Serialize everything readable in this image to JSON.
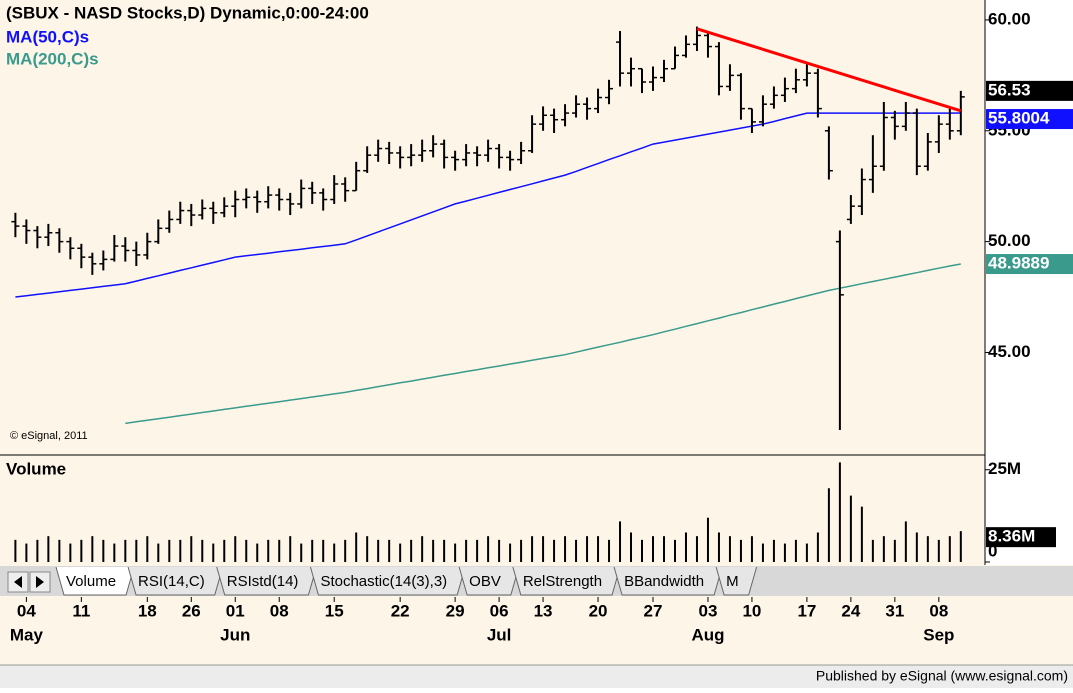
{
  "chart_data": [
    {
      "type": "ohlc",
      "title": "(SBUX - NASD Stocks,D) Dynamic,0:00-24:00",
      "color": "#000000",
      "open": [
        50.9,
        50.7,
        50.5,
        50.2,
        50.4,
        50.0,
        49.7,
        49.3,
        49.0,
        49.2,
        49.8,
        49.6,
        49.4,
        50.0,
        50.6,
        51.0,
        51.4,
        51.2,
        51.5,
        51.3,
        51.6,
        51.9,
        52.0,
        51.8,
        52.1,
        51.9,
        51.7,
        52.4,
        52.2,
        51.9,
        52.6,
        52.3,
        53.2,
        53.9,
        54.2,
        54.0,
        53.8,
        53.9,
        54.1,
        54.4,
        53.8,
        53.7,
        54.0,
        53.9,
        54.2,
        53.8,
        53.7,
        54.1,
        55.3,
        55.7,
        55.5,
        55.8,
        56.2,
        56.0,
        56.5,
        59.0,
        57.6,
        57.8,
        57.2,
        57.4,
        57.8,
        58.4,
        58.9,
        59.3,
        58.8,
        57.0,
        57.5,
        56.0,
        55.4,
        56.2,
        56.6,
        56.9,
        57.3,
        57.6,
        55.0,
        50.0,
        51.0,
        51.6,
        52.8,
        53.4,
        55.6,
        55.2,
        55.8,
        53.4,
        54.5,
        55.3,
        55.0
      ],
      "high": [
        51.3,
        51.0,
        50.7,
        50.8,
        50.6,
        50.2,
        49.9,
        49.5,
        49.6,
        50.3,
        50.2,
        50.0,
        50.4,
        51.0,
        51.4,
        51.8,
        51.7,
        51.9,
        51.8,
        52.0,
        52.3,
        52.4,
        52.3,
        52.5,
        52.4,
        52.2,
        52.8,
        52.7,
        52.4,
        53.0,
        52.9,
        53.6,
        54.3,
        54.6,
        54.5,
        54.3,
        54.4,
        54.6,
        54.8,
        54.6,
        54.1,
        54.4,
        54.3,
        54.6,
        54.4,
        54.1,
        54.5,
        55.7,
        56.1,
        56.0,
        56.2,
        56.6,
        56.5,
        56.9,
        57.3,
        59.5,
        58.3,
        57.8,
        57.9,
        58.2,
        58.8,
        59.3,
        59.7,
        59.4,
        59.0,
        58.0,
        57.6,
        56.0,
        56.6,
        57.0,
        57.4,
        57.8,
        58.0,
        57.8,
        55.2,
        50.5,
        52.1,
        53.3,
        54.8,
        56.3,
        55.9,
        56.3,
        56.0,
        54.9,
        55.7,
        56.1,
        56.8
      ],
      "low": [
        50.2,
        49.9,
        49.7,
        49.8,
        49.5,
        49.2,
        48.8,
        48.5,
        48.7,
        49.1,
        49.1,
        48.9,
        49.2,
        49.9,
        50.4,
        50.8,
        50.7,
        51.0,
        50.8,
        51.1,
        51.1,
        51.5,
        51.3,
        51.5,
        51.4,
        51.2,
        51.5,
        51.7,
        51.4,
        51.7,
        51.8,
        52.3,
        53.1,
        53.6,
        53.5,
        53.3,
        53.4,
        53.6,
        53.8,
        53.3,
        53.2,
        53.4,
        53.4,
        53.6,
        53.3,
        53.2,
        53.5,
        54.0,
        55.0,
        54.9,
        55.2,
        55.6,
        55.5,
        55.8,
        56.2,
        57.0,
        57.0,
        56.7,
        56.8,
        57.2,
        57.8,
        58.3,
        58.6,
        58.3,
        56.6,
        56.8,
        55.5,
        54.9,
        55.2,
        56.0,
        56.3,
        56.7,
        57.0,
        55.6,
        52.8,
        41.5,
        50.8,
        51.2,
        52.2,
        53.2,
        54.6,
        55.0,
        53.0,
        53.2,
        54.0,
        54.6,
        54.8
      ],
      "close": [
        50.7,
        50.5,
        50.2,
        50.4,
        50.0,
        49.7,
        49.3,
        49.0,
        49.2,
        49.8,
        49.6,
        49.4,
        50.0,
        50.6,
        51.0,
        51.4,
        51.2,
        51.5,
        51.3,
        51.6,
        51.9,
        52.0,
        51.8,
        52.1,
        51.9,
        51.7,
        52.4,
        52.2,
        51.9,
        52.6,
        52.3,
        53.2,
        53.9,
        54.2,
        54.0,
        53.8,
        53.9,
        54.1,
        54.4,
        53.8,
        53.7,
        54.0,
        53.9,
        54.2,
        53.8,
        53.7,
        54.1,
        55.3,
        55.7,
        55.5,
        55.8,
        56.2,
        56.0,
        56.5,
        56.9,
        57.6,
        57.8,
        57.2,
        57.4,
        57.8,
        58.4,
        58.9,
        59.3,
        58.8,
        57.0,
        57.5,
        56.0,
        55.4,
        56.2,
        56.6,
        56.9,
        57.3,
        57.6,
        56.0,
        53.2,
        47.6,
        51.6,
        52.8,
        53.4,
        55.6,
        55.2,
        55.8,
        53.4,
        54.5,
        55.3,
        55.0,
        56.53
      ],
      "series": [
        {
          "name": "MA(50,C)s",
          "color": "#1010ff",
          "last_label": "55.8004",
          "values": [
            47.5,
            47.56,
            47.62,
            47.68,
            47.74,
            47.8,
            47.86,
            47.92,
            47.98,
            48.04,
            48.1,
            48.22,
            48.34,
            48.46,
            48.58,
            48.7,
            48.82,
            48.94,
            49.06,
            49.18,
            49.3,
            49.36,
            49.42,
            49.48,
            49.54,
            49.6,
            49.66,
            49.72,
            49.78,
            49.84,
            49.9,
            50.08,
            50.26,
            50.44,
            50.62,
            50.8,
            50.98,
            51.16,
            51.34,
            51.52,
            51.7,
            51.83,
            51.96,
            52.09,
            52.22,
            52.35,
            52.48,
            52.61,
            52.74,
            52.87,
            53.0,
            53.17,
            53.35,
            53.52,
            53.7,
            53.87,
            54.05,
            54.22,
            54.4,
            54.49,
            54.58,
            54.67,
            54.76,
            54.85,
            54.94,
            55.03,
            55.12,
            55.21,
            55.3,
            55.42,
            55.55,
            55.67,
            55.8,
            55.8,
            55.8,
            55.8,
            55.8,
            55.8,
            55.8,
            55.8,
            55.8,
            55.8,
            55.8,
            55.8,
            55.8,
            55.8,
            55.8004
          ]
        },
        {
          "name": "MA(200,C)s",
          "color": "#3a9a8c",
          "last_label": "48.9889",
          "values": [
            null,
            null,
            null,
            null,
            null,
            null,
            null,
            null,
            null,
            null,
            41.8,
            41.87,
            41.94,
            42.01,
            42.08,
            42.15,
            42.22,
            42.29,
            42.36,
            42.43,
            42.5,
            42.57,
            42.64,
            42.71,
            42.78,
            42.85,
            42.92,
            42.99,
            43.06,
            43.13,
            43.2,
            43.29,
            43.37,
            43.46,
            43.54,
            43.63,
            43.71,
            43.8,
            43.88,
            43.97,
            44.05,
            44.14,
            44.22,
            44.31,
            44.39,
            44.48,
            44.56,
            44.65,
            44.73,
            44.82,
            44.9,
            45.01,
            45.13,
            45.24,
            45.35,
            45.46,
            45.58,
            45.69,
            45.8,
            45.93,
            46.05,
            46.18,
            46.3,
            46.43,
            46.55,
            46.68,
            46.8,
            46.93,
            47.05,
            47.18,
            47.3,
            47.43,
            47.55,
            47.68,
            47.8,
            47.9,
            48.0,
            48.1,
            48.2,
            48.3,
            48.4,
            48.5,
            48.6,
            48.7,
            48.8,
            48.9,
            48.9889
          ]
        }
      ],
      "trendline": {
        "color": "#ff0000",
        "x": [
          62,
          86
        ],
        "y": [
          59.6,
          55.9
        ]
      },
      "annotation": "© eSignal, 2011",
      "xlim": [
        -1.4,
        88.2
      ],
      "ylim": [
        40.6,
        60.9
      ],
      "yticks": [
        {
          "value": 60,
          "label": "60.00"
        },
        {
          "value": 55,
          "label": "55.00"
        },
        {
          "value": 50,
          "label": "50.00"
        },
        {
          "value": 45,
          "label": "45.00"
        }
      ],
      "xticks": [
        {
          "value": 1,
          "label": "04"
        },
        {
          "value": 6,
          "label": "11"
        },
        {
          "value": 12,
          "label": "18"
        },
        {
          "value": 16,
          "label": "26"
        },
        {
          "value": 20,
          "label": "01"
        },
        {
          "value": 24,
          "label": "08"
        },
        {
          "value": 29,
          "label": "15"
        },
        {
          "value": 35,
          "label": "22"
        },
        {
          "value": 40,
          "label": "29"
        },
        {
          "value": 44,
          "label": "06"
        },
        {
          "value": 48,
          "label": "13"
        },
        {
          "value": 53,
          "label": "20"
        },
        {
          "value": 58,
          "label": "27"
        },
        {
          "value": 63,
          "label": "03"
        },
        {
          "value": 67,
          "label": "10"
        },
        {
          "value": 72,
          "label": "17"
        },
        {
          "value": 76,
          "label": "24"
        },
        {
          "value": 80,
          "label": "31"
        },
        {
          "value": 84,
          "label": "08"
        }
      ],
      "month_labels": [
        {
          "value": 1,
          "label": "May"
        },
        {
          "value": 20,
          "label": "Jun"
        },
        {
          "value": 44,
          "label": "Jul"
        },
        {
          "value": 63,
          "label": "Aug"
        },
        {
          "value": 84,
          "label": "Sep"
        }
      ]
    },
    {
      "type": "bar",
      "title": "Volume",
      "color": "#000000",
      "last_label": "8.36M",
      "values": [
        6,
        5,
        6,
        7,
        6,
        5,
        6,
        7,
        6,
        5,
        6,
        6,
        7,
        5,
        6,
        6,
        7,
        6,
        5,
        6,
        7,
        6,
        5,
        6,
        6,
        7,
        5,
        6,
        6,
        5,
        6,
        8,
        7,
        6,
        6,
        5,
        6,
        7,
        6,
        6,
        5,
        6,
        6,
        7,
        6,
        5,
        6,
        7,
        7,
        6,
        7,
        6,
        7,
        7,
        6,
        11,
        8,
        6,
        7,
        7,
        6,
        8,
        7,
        12,
        8,
        7,
        6,
        7,
        5,
        6,
        5,
        6,
        5,
        8,
        20,
        27,
        18,
        15,
        6,
        7,
        6,
        11,
        8,
        7,
        6,
        7,
        8.36
      ],
      "ylim": [
        0,
        29
      ],
      "yticks": [
        {
          "value": 25,
          "label": "25M"
        },
        0
      ]
    }
  ],
  "tabs": [
    "Volume",
    "RSI(14,C)",
    "RSIstd(14)",
    "Stochastic(14(3),3)",
    "OBV",
    "RelStrength",
    "BBandwidth",
    "M"
  ],
  "footer": "Published by eSignal (www.esignal.com)"
}
